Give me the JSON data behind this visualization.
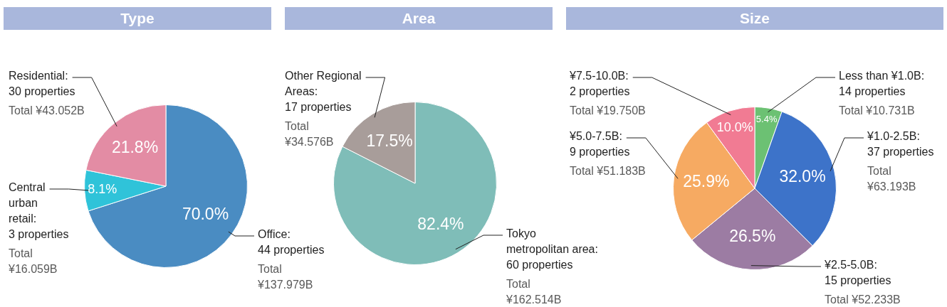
{
  "chart_data": [
    {
      "type": "pie",
      "title": "Type",
      "categories": [
        "Office:\n44 properties\n\nTotal\n¥137.979B",
        "Central\nurban\nretail:\n3 properties\n\nTotal\n¥16.059B",
        "Residential:\n30 properties\n\nTotal ¥43.052B"
      ],
      "values": [
        70.0,
        8.1,
        21.8
      ],
      "colors": [
        "#4a8cc2",
        "#2fc3d9",
        "#e38ca4"
      ],
      "value_labels": [
        "70.0%",
        "8.1%",
        "21.8%"
      ]
    },
    {
      "type": "pie",
      "title": "Area",
      "categories": [
        "Tokyo\nmetropolitan area:\n60 properties\n\nTotal\n¥162.514B",
        "Other Regional\nAreas:\n17 properties\n\nTotal\n¥34.576B"
      ],
      "values": [
        82.4,
        17.5
      ],
      "colors": [
        "#7fbdb8",
        "#a89d9a"
      ],
      "value_labels": [
        "82.4%",
        "17.5%"
      ]
    },
    {
      "type": "pie",
      "title": "Size",
      "categories": [
        "Less than ¥1.0B:\n14 properties\n\nTotal ¥10.731B",
        "¥1.0-2.5B:\n37 properties\n\nTotal\n¥63.193B",
        "¥2.5-5.0B:\n15 properties\n\nTotal ¥52.233B",
        "¥5.0-7.5B:\n9 properties\n\nTotal ¥51.183B",
        "¥7.5-10.0B:\n2 properties\n\nTotal ¥19.750B"
      ],
      "values": [
        5.4,
        32.0,
        26.5,
        25.9,
        10.0
      ],
      "colors": [
        "#6cc173",
        "#3d73c9",
        "#9c7ca3",
        "#f6aa62",
        "#f17b93"
      ],
      "value_labels": [
        "5.4%",
        "32.0%",
        "26.5%",
        "25.9%",
        "10.0%"
      ]
    }
  ]
}
